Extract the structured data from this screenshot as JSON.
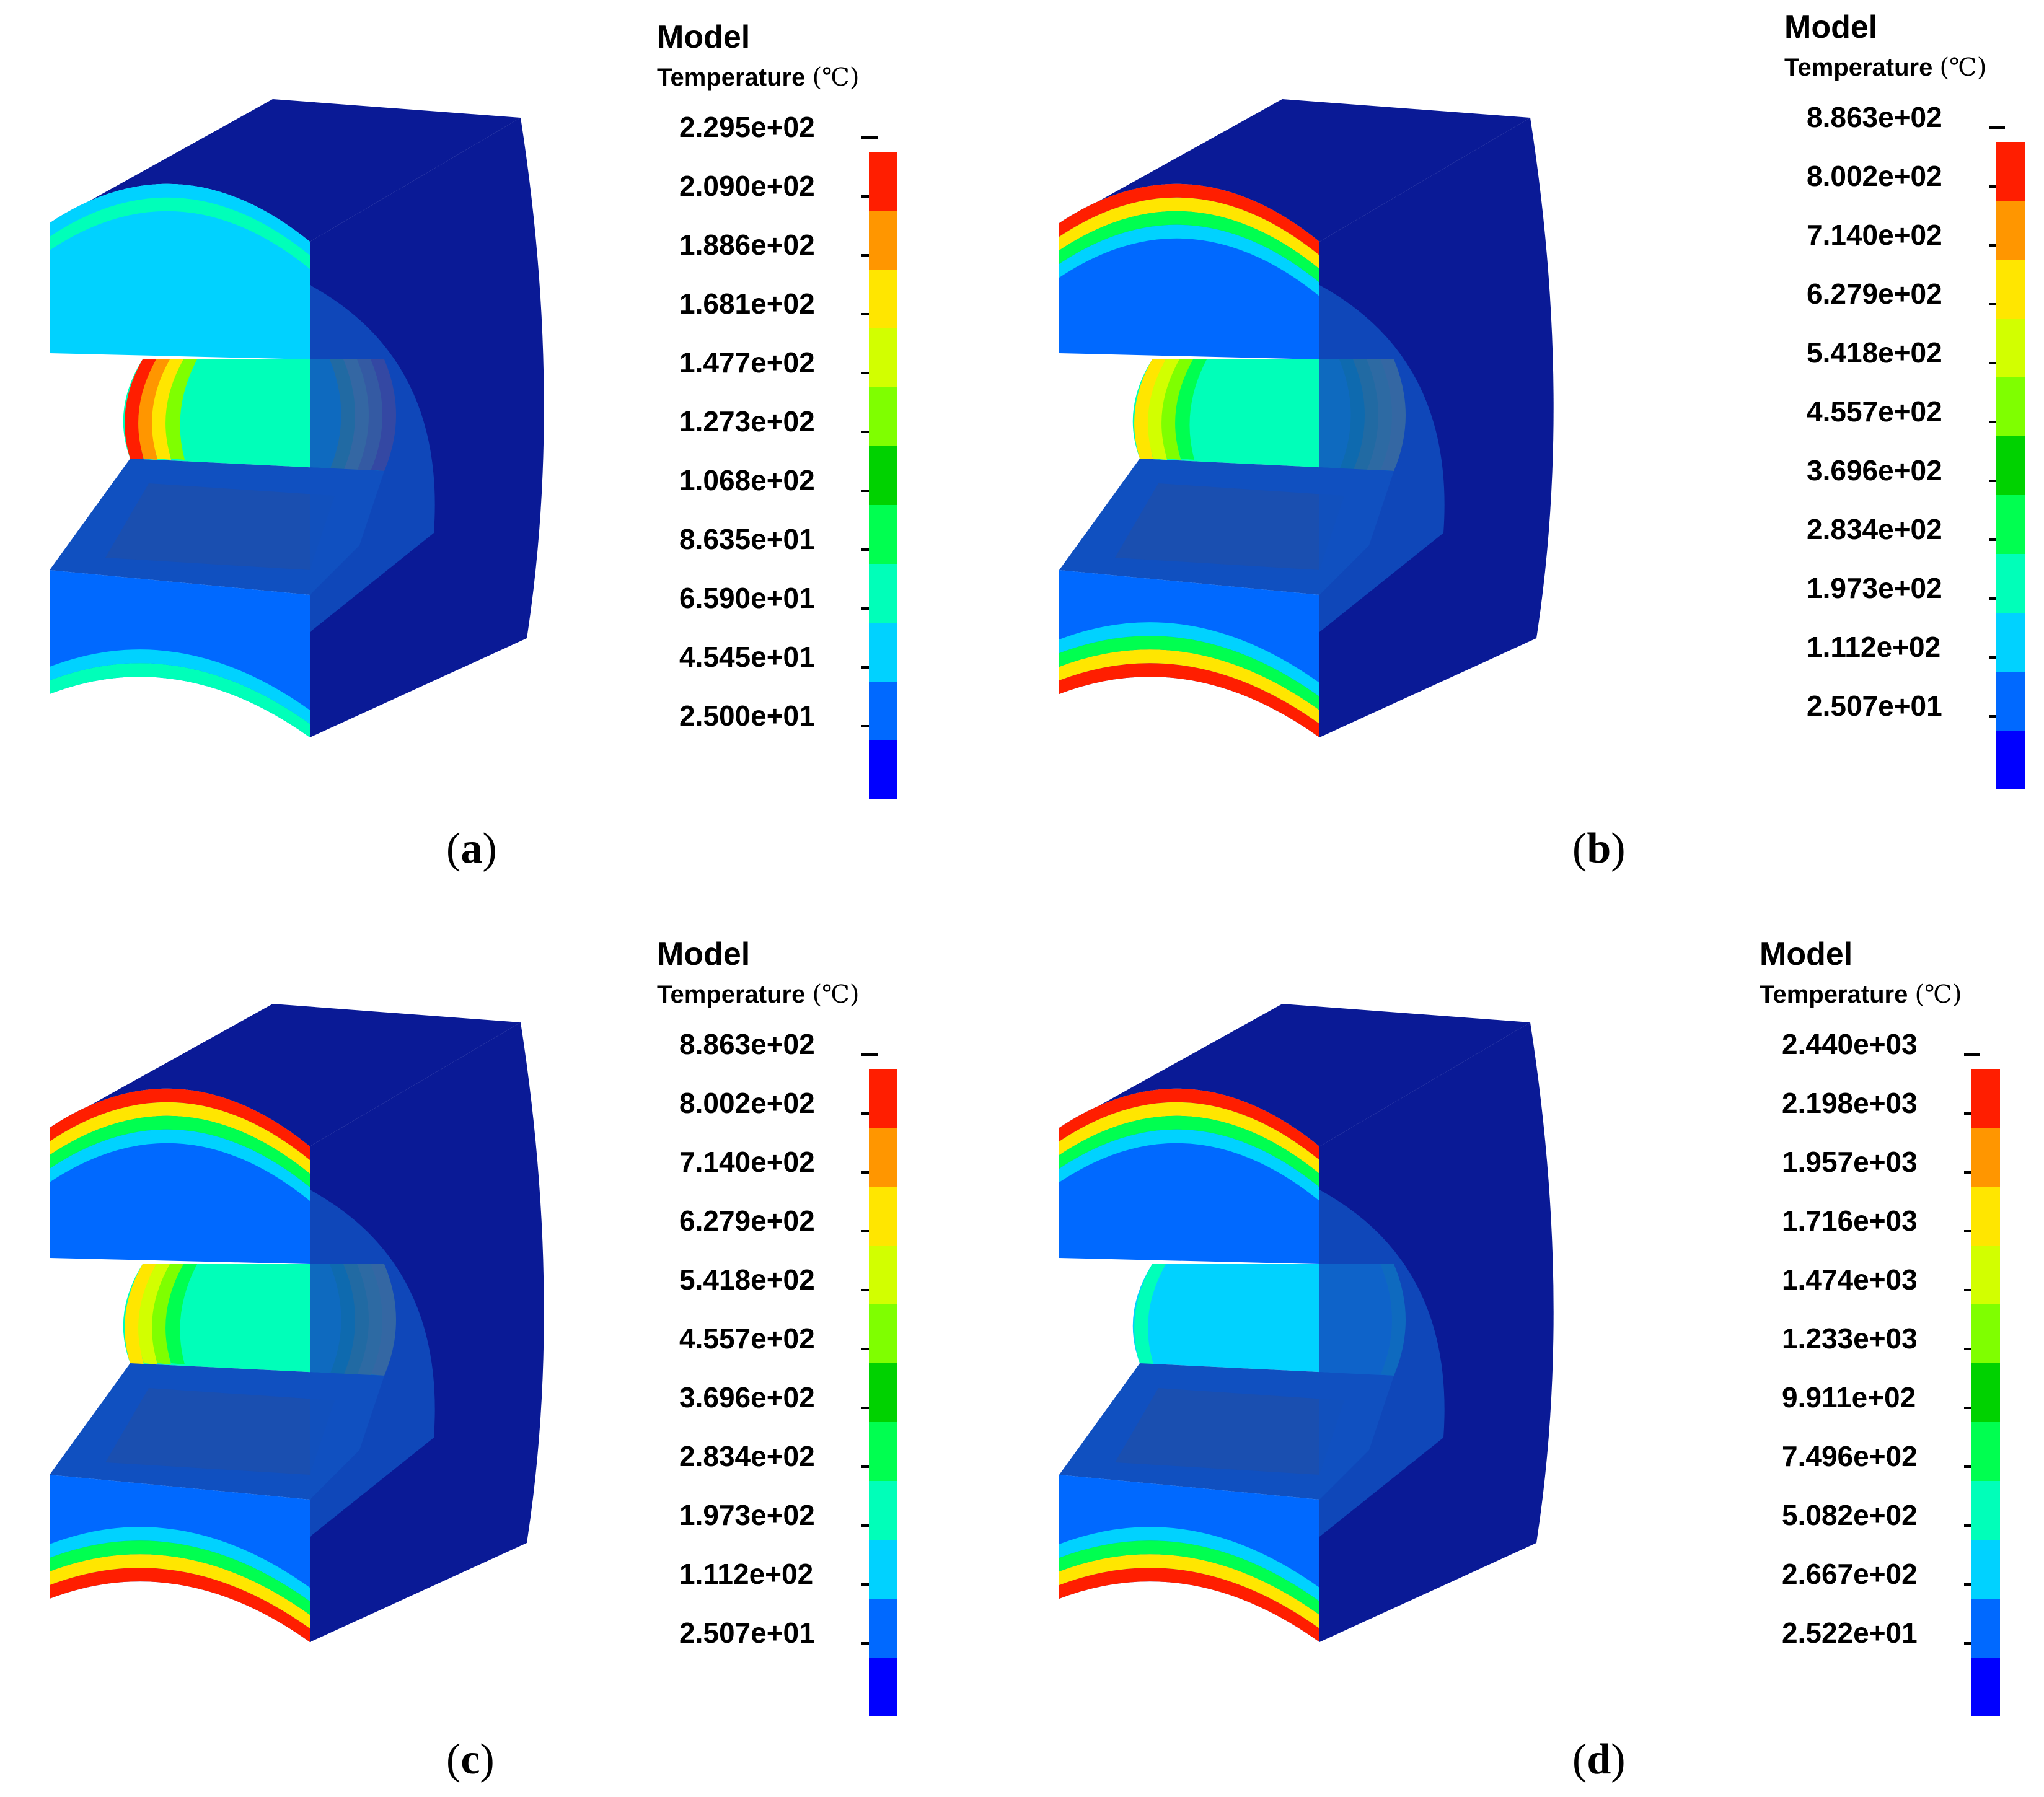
{
  "colors": {
    "scale": [
      "#0000ff",
      "#0069ff",
      "#00d2ff",
      "#00ffb9",
      "#00ff50",
      "#00d200",
      "#7fff00",
      "#d2ff00",
      "#ffe600",
      "#ff9600",
      "#ff1e00"
    ],
    "body_dark": "#0a1a96",
    "body_mid": "#1050c0"
  },
  "panels": [
    {
      "id": "a",
      "caption_letter": "a",
      "legend": {
        "title": "Model",
        "quantity": "Temperature",
        "unit": "(℃)",
        "ticks": [
          "2.295e+02",
          "2.090e+02",
          "1.886e+02",
          "1.681e+02",
          "1.477e+02",
          "1.273e+02",
          "1.068e+02",
          "8.635e+01",
          "6.590e+01",
          "4.545e+01",
          "2.500e+01"
        ]
      }
    },
    {
      "id": "b",
      "caption_letter": "b",
      "legend": {
        "title": "Model",
        "quantity": "Temperature",
        "unit": "(℃)",
        "ticks": [
          "8.863e+02",
          "8.002e+02",
          "7.140e+02",
          "6.279e+02",
          "5.418e+02",
          "4.557e+02",
          "3.696e+02",
          "2.834e+02",
          "1.973e+02",
          "1.112e+02",
          "2.507e+01"
        ]
      }
    },
    {
      "id": "c",
      "caption_letter": "c",
      "legend": {
        "title": "Model",
        "quantity": "Temperature",
        "unit": "(℃)",
        "ticks": [
          "8.863e+02",
          "8.002e+02",
          "7.140e+02",
          "6.279e+02",
          "5.418e+02",
          "4.557e+02",
          "3.696e+02",
          "2.834e+02",
          "1.973e+02",
          "1.112e+02",
          "2.507e+01"
        ]
      }
    },
    {
      "id": "d",
      "caption_letter": "d",
      "legend": {
        "title": "Model",
        "quantity": "Temperature",
        "unit": "(℃)",
        "ticks": [
          "2.440e+03",
          "2.198e+03",
          "1.957e+03",
          "1.716e+03",
          "1.474e+03",
          "1.233e+03",
          "9.911e+02",
          "7.496e+02",
          "5.082e+02",
          "2.667e+02",
          "2.522e+01"
        ]
      }
    }
  ]
}
